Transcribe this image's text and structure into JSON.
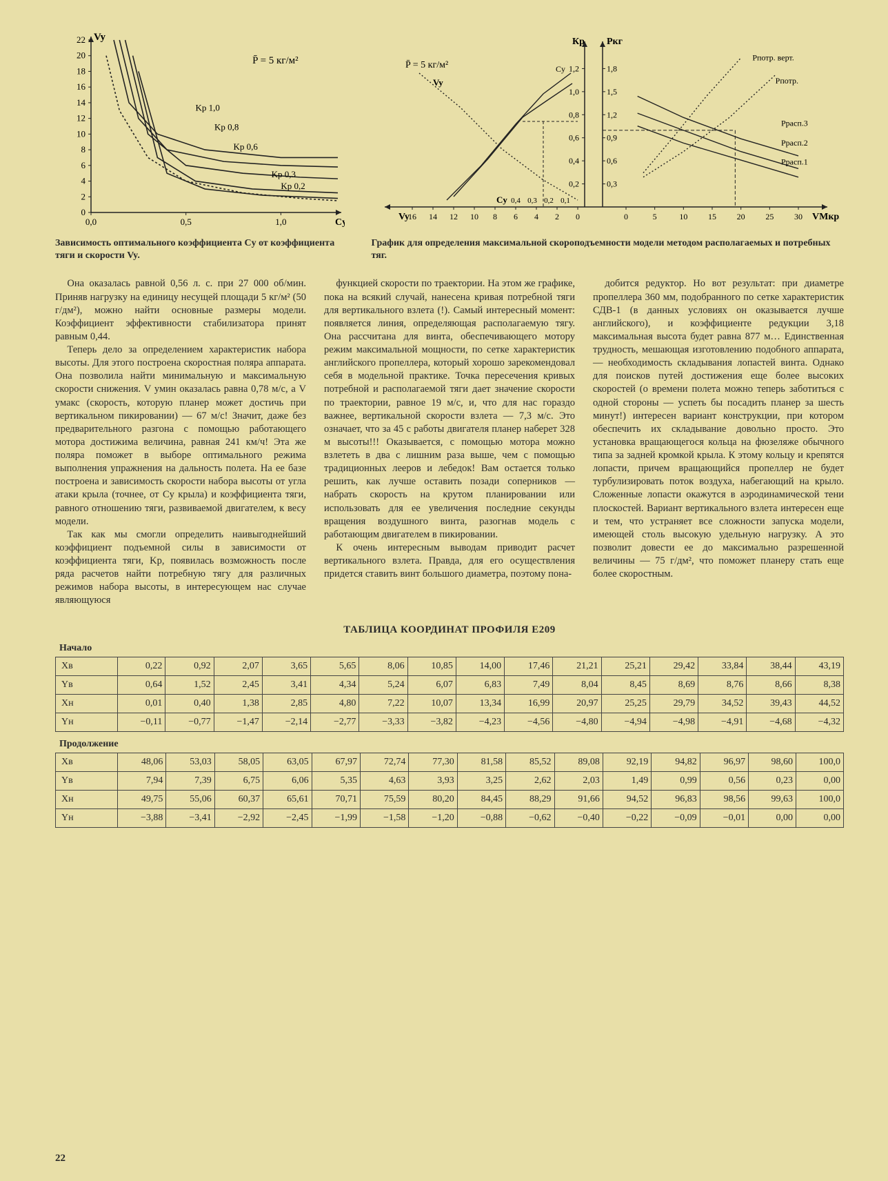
{
  "left_chart": {
    "type": "line",
    "x_axis_label": "Cy",
    "y_axis_label": "Vy",
    "xlim": [
      0,
      1.3
    ],
    "ylim": [
      0,
      22
    ],
    "xticks": [
      0,
      0.5,
      1.0
    ],
    "yticks": [
      0,
      2,
      4,
      6,
      8,
      10,
      12,
      14,
      16,
      18,
      20,
      22
    ],
    "formula": "P̄ = 5 кг/м²",
    "series": [
      {
        "label": "Kр 1,0",
        "color": "#222",
        "dash": null,
        "points": [
          [
            0.12,
            22
          ],
          [
            0.2,
            14
          ],
          [
            0.35,
            10
          ],
          [
            0.6,
            8
          ],
          [
            1.0,
            7
          ],
          [
            1.3,
            7
          ]
        ]
      },
      {
        "label": "Kр 0,8",
        "color": "#222",
        "dash": null,
        "points": [
          [
            0.15,
            22
          ],
          [
            0.25,
            12
          ],
          [
            0.4,
            8
          ],
          [
            0.7,
            6.5
          ],
          [
            1.0,
            6
          ],
          [
            1.3,
            5.8
          ]
        ]
      },
      {
        "label": "Kр 0,6",
        "color": "#222",
        "dash": null,
        "points": [
          [
            0.18,
            22
          ],
          [
            0.3,
            10
          ],
          [
            0.5,
            6
          ],
          [
            0.8,
            5
          ],
          [
            1.1,
            4.5
          ],
          [
            1.3,
            4.3
          ]
        ]
      },
      {
        "label": "Kр 0,3",
        "color": "#222",
        "dash": null,
        "points": [
          [
            0.22,
            20
          ],
          [
            0.35,
            7
          ],
          [
            0.55,
            4
          ],
          [
            0.85,
            3
          ],
          [
            1.1,
            2.7
          ],
          [
            1.3,
            2.5
          ]
        ]
      },
      {
        "label": "Kр 0,2",
        "color": "#222",
        "dash": null,
        "points": [
          [
            0.25,
            18
          ],
          [
            0.4,
            5
          ],
          [
            0.6,
            3
          ],
          [
            0.9,
            2.2
          ],
          [
            1.1,
            2
          ],
          [
            1.3,
            1.8
          ]
        ]
      },
      {
        "label": "dashed",
        "color": "#222",
        "dash": "3,3",
        "points": [
          [
            0.08,
            20
          ],
          [
            0.15,
            13
          ],
          [
            0.3,
            7
          ],
          [
            0.5,
            4
          ],
          [
            0.8,
            2.5
          ],
          [
            1.1,
            1.8
          ],
          [
            1.3,
            1.5
          ]
        ]
      }
    ],
    "caption": "Зависимость оптимального коэффициента Cy от коэффициента тяги и скорости Vy."
  },
  "right_chart": {
    "type": "line",
    "left_y_label": "Кр",
    "right_y_label": "Pкг",
    "x_left_label": "Vy",
    "x_right_label": "VМкр.",
    "formula": "P̄ = 5 кг/м²",
    "left_panel_xticks": [
      "16",
      "14",
      "12",
      "10",
      "8",
      "6",
      "4",
      "2",
      "0"
    ],
    "cy_ticks": [
      "0,4",
      "0,3",
      "0,2",
      "0,1"
    ],
    "kp_ticks": [
      "0,2",
      "0,4",
      "0,6",
      "0,8",
      "1,0",
      "1,2"
    ],
    "p_ticks": [
      "0,3",
      "0,6",
      "0,9",
      "1,2",
      "1,5",
      "1,8"
    ],
    "right_xticks": [
      "0",
      "5",
      "10",
      "15",
      "20",
      "25",
      "30"
    ],
    "curve_labels": [
      "Pпотр. верт.",
      "Pпотр.",
      "Pрасп.3",
      "Pрасп.2",
      "Pрасп.1"
    ],
    "line_color": "#222",
    "caption": "График для определения максимальной скороподъемности модели методом располагаемых и потребных тяг."
  },
  "text": {
    "c1p1": "Она оказалась равной 0,56 л. с. при 27 000 об/мин. Приняв нагрузку на единицу несущей площади 5 кг/м² (50 г/дм²), можно найти основные размеры модели. Коэффициент эффективности стабилизатора принят равным 0,44.",
    "c1p2": "Теперь дело за определением характеристик набора высоты. Для этого построена скоростная поляра аппарата. Она позволила найти минимальную и максимальную скорости снижения. V умин оказалась равна 0,78 м/с, а V умакс (скорость, которую планер может достичь при вертикальном пикировании) — 67 м/с! Значит, даже без предварительного разгона с помощью работающего мотора достижима величина, равная 241 км/ч! Эта же поляра поможет в выборе оптимального режима выполнения упражнения на дальность полета. На ее базе построена и зависимость скорости набора высоты от угла атаки крыла (точнее, от Cy крыла) и коэффициента тяги, равного отношению тяги, развиваемой двигателем, к весу модели.",
    "c1p3": "Так как мы смогли определить наивыгоднейший коэффициент подъемной силы в зависимости от коэффициента тяги, Kр, появилась возможность после ряда расчетов найти потребную тягу для различных режимов набора высоты, в интересующем нас случае являющуюся",
    "c2p1": "функцией скорости по траектории. На этом же графике, пока на всякий случай, нанесена кривая потребной тяги для вертикального взлета (!). Самый интересный момент: появляется линия, определяющая располагаемую тягу. Она рассчитана для винта, обеспечивающего мотору режим максимальной мощности, по сетке характеристик английского пропеллера, который хорошо зарекомендовал себя в модельной практике. Точка пересечения кривых потребной и располагаемой тяги дает значение скорости по траектории, равное 19 м/с, и, что для нас гораздо важнее, вертикальной скорости взлета — 7,3 м/с. Это означает, что за 45 с работы двигателя планер наберет 328 м высоты!!! Оказывается, с помощью мотора можно взлететь в два с лишним раза выше, чем с помощью традиционных лееров и лебедок! Вам остается только решить, как лучше оставить позади соперников — набрать скорость на крутом планировании или использовать для ее увеличения последние секунды вращения воздушного винта, разогнав модель с работающим двигателем в пикировании.",
    "c2p2": "К очень интересным выводам приводит расчет вертикального взлета. Правда, для его осуществления придется ставить винт большого диаметра, поэтому пона-",
    "c3p1": "добится редуктор. Но вот результат: при диаметре пропеллера 360 мм, подобранного по сетке характеристик СДВ-1 (в данных условиях он оказывается лучше английского), и коэффициенте редукции 3,18 максимальная высота будет равна 877 м… Единственная трудность, мешающая изготовлению подобного аппарата, — необходимость складывания лопастей винта. Однако для поисков путей достижения еще более высоких скоростей (о времени полета можно теперь заботиться с одной стороны — успеть бы посадить планер за шесть минут!) интересен вариант конструкции, при котором обеспечить их складывание довольно просто. Это установка вращающегося кольца на фюзеляже обычного типа за задней кромкой крыла. К этому кольцу и крепятся лопасти, причем вращающийся пропеллер не будет турбулизировать поток воздуха, набегающий на крыло. Сложенные лопасти окажутся в аэродинамической тени плоскостей. Вариант вертикального взлета интересен еще и тем, что устраняет все сложности запуска модели, имеющей столь высокую удельную нагрузку. А это позволит довести ее до максимально разрешенной величины — 75 г/дм², что поможет планеру стать еще более скоростным."
  },
  "table": {
    "title": "ТАБЛИЦА КООРДИНАТ ПРОФИЛЯ E209",
    "label_start": "Начало",
    "label_cont": "Продолжение",
    "rows_head": [
      "Xв",
      "Yв",
      "Xн",
      "Yн"
    ],
    "part1": [
      [
        "0,22",
        "0,92",
        "2,07",
        "3,65",
        "5,65",
        "8,06",
        "10,85",
        "14,00",
        "17,46",
        "21,21",
        "25,21",
        "29,42",
        "33,84",
        "38,44",
        "43,19"
      ],
      [
        "0,64",
        "1,52",
        "2,45",
        "3,41",
        "4,34",
        "5,24",
        "6,07",
        "6,83",
        "7,49",
        "8,04",
        "8,45",
        "8,69",
        "8,76",
        "8,66",
        "8,38"
      ],
      [
        "0,01",
        "0,40",
        "1,38",
        "2,85",
        "4,80",
        "7,22",
        "10,07",
        "13,34",
        "16,99",
        "20,97",
        "25,25",
        "29,79",
        "34,52",
        "39,43",
        "44,52"
      ],
      [
        "−0,11",
        "−0,77",
        "−1,47",
        "−2,14",
        "−2,77",
        "−3,33",
        "−3,82",
        "−4,23",
        "−4,56",
        "−4,80",
        "−4,94",
        "−4,98",
        "−4,91",
        "−4,68",
        "−4,32"
      ]
    ],
    "part2": [
      [
        "48,06",
        "53,03",
        "58,05",
        "63,05",
        "67,97",
        "72,74",
        "77,30",
        "81,58",
        "85,52",
        "89,08",
        "92,19",
        "94,82",
        "96,97",
        "98,60",
        "100,0"
      ],
      [
        "7,94",
        "7,39",
        "6,75",
        "6,06",
        "5,35",
        "4,63",
        "3,93",
        "3,25",
        "2,62",
        "2,03",
        "1,49",
        "0,99",
        "0,56",
        "0,23",
        "0,00"
      ],
      [
        "49,75",
        "55,06",
        "60,37",
        "65,61",
        "70,71",
        "75,59",
        "80,20",
        "84,45",
        "88,29",
        "91,66",
        "94,52",
        "96,83",
        "98,56",
        "99,63",
        "100,0"
      ],
      [
        "−3,88",
        "−3,41",
        "−2,92",
        "−2,45",
        "−1,99",
        "−1,58",
        "−1,20",
        "−0,88",
        "−0,62",
        "−0,40",
        "−0,22",
        "−0,09",
        "−0,01",
        "0,00",
        "0,00"
      ]
    ]
  },
  "page_number": "22",
  "colors": {
    "bg": "#e8dfa8",
    "ink": "#2a2a2a",
    "rule": "#444"
  }
}
